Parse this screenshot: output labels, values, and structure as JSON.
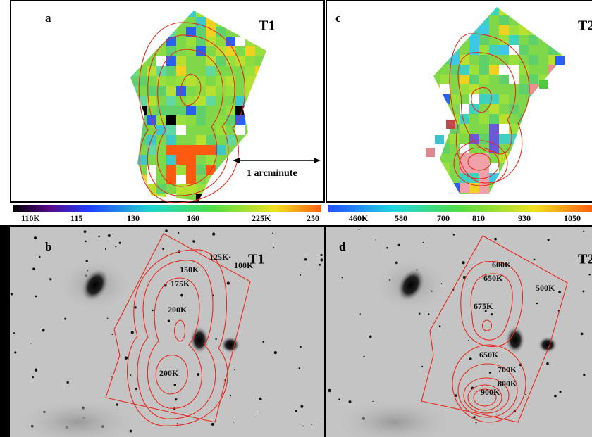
{
  "panels": [
    {
      "label": "a",
      "tag": "T1",
      "colorbar_ticks": [
        "110K",
        "115",
        "130",
        "160",
        "225K",
        "250"
      ]
    },
    {
      "label": "c",
      "tag": "T2",
      "colorbar_ticks": [
        "460K",
        "580",
        "700",
        "810",
        "930",
        "1050"
      ]
    },
    {
      "label": "b",
      "tag": "T1",
      "contour_labels": [
        "150K",
        "125K",
        "100K",
        "175K",
        "200K",
        "200K"
      ]
    },
    {
      "label": "d",
      "tag": "T2",
      "contour_labels": [
        "600K",
        "650K",
        "500K",
        "675K",
        "650K",
        "700K",
        "800K",
        "900K"
      ]
    }
  ],
  "scale_bar": "1 arcminute"
}
